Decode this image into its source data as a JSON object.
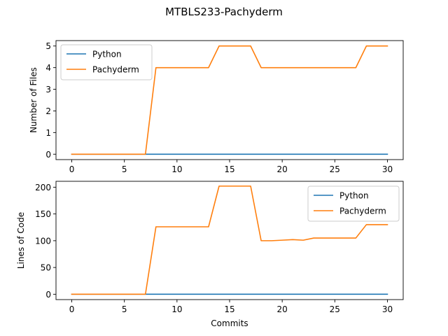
{
  "figure": {
    "title": "MTBLS233-Pachyderm",
    "background": "#ffffff"
  },
  "colors": {
    "Python": "#1f77b4",
    "Pachyderm": "#ff7f0e"
  },
  "chart_data": [
    {
      "type": "line",
      "title": "",
      "xlabel": "",
      "ylabel": "Number of Files",
      "xlim": [
        -1.5,
        31.5
      ],
      "ylim": [
        -0.25,
        5.25
      ],
      "xticks": [
        0,
        5,
        10,
        15,
        20,
        25,
        30
      ],
      "yticks": [
        0,
        1,
        2,
        3,
        4,
        5
      ],
      "grid": false,
      "legend_position": "upper-left",
      "x": [
        0,
        1,
        2,
        3,
        4,
        5,
        6,
        7,
        8,
        9,
        10,
        11,
        12,
        13,
        14,
        15,
        16,
        17,
        18,
        19,
        20,
        21,
        22,
        23,
        24,
        25,
        26,
        27,
        28,
        29,
        30
      ],
      "series": [
        {
          "name": "Python",
          "values": [
            0,
            0,
            0,
            0,
            0,
            0,
            0,
            0,
            0,
            0,
            0,
            0,
            0,
            0,
            0,
            0,
            0,
            0,
            0,
            0,
            0,
            0,
            0,
            0,
            0,
            0,
            0,
            0,
            0,
            0,
            0
          ]
        },
        {
          "name": "Pachyderm",
          "values": [
            0,
            0,
            0,
            0,
            0,
            0,
            0,
            0,
            4,
            4,
            4,
            4,
            4,
            4,
            5,
            5,
            5,
            5,
            4,
            4,
            4,
            4,
            4,
            4,
            4,
            4,
            4,
            4,
            5,
            5,
            5
          ]
        }
      ]
    },
    {
      "type": "line",
      "title": "",
      "xlabel": "Commits",
      "ylabel": "Lines of Code",
      "xlim": [
        -1.5,
        31.5
      ],
      "ylim": [
        -10,
        211
      ],
      "xticks": [
        0,
        5,
        10,
        15,
        20,
        25,
        30
      ],
      "yticks": [
        0,
        50,
        100,
        150,
        200
      ],
      "grid": false,
      "legend_position": "upper-right",
      "x": [
        0,
        1,
        2,
        3,
        4,
        5,
        6,
        7,
        8,
        9,
        10,
        11,
        12,
        13,
        14,
        15,
        16,
        17,
        18,
        19,
        20,
        21,
        22,
        23,
        24,
        25,
        26,
        27,
        28,
        29,
        30
      ],
      "series": [
        {
          "name": "Python",
          "values": [
            0,
            0,
            0,
            0,
            0,
            0,
            0,
            0,
            0,
            0,
            0,
            0,
            0,
            0,
            0,
            0,
            0,
            0,
            0,
            0,
            0,
            0,
            0,
            0,
            0,
            0,
            0,
            0,
            0,
            0,
            0
          ]
        },
        {
          "name": "Pachyderm",
          "values": [
            0,
            0,
            0,
            0,
            0,
            0,
            0,
            0,
            126,
            126,
            126,
            126,
            126,
            126,
            202,
            202,
            202,
            202,
            100,
            100,
            101,
            102,
            101,
            105,
            105,
            105,
            105,
            105,
            130,
            130,
            130
          ]
        }
      ]
    }
  ]
}
